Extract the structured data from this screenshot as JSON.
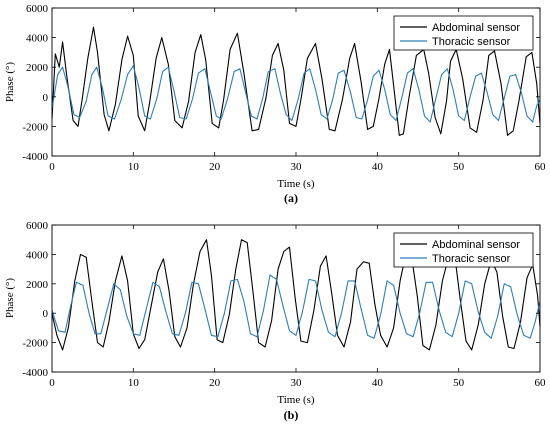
{
  "chart_data": [
    {
      "type": "line",
      "caption": "(a)",
      "xlabel": "Time (s)",
      "ylabel": "Phase (°)",
      "xlim": [
        0,
        60
      ],
      "ylim": [
        -4000,
        6000
      ],
      "xticks": [
        "0",
        "10",
        "20",
        "30",
        "40",
        "50",
        "60"
      ],
      "yticks": [
        "-4000",
        "-2000",
        "0",
        "2000",
        "4000",
        "6000"
      ],
      "legend_position": "top-right",
      "series": [
        {
          "name": "Abdominal sensor",
          "color": "#000000",
          "x": [
            0,
            0.4,
            0.9,
            1.3,
            1.8,
            2.6,
            3.2,
            3.7,
            4.4,
            5.1,
            5.6,
            6.4,
            7.0,
            7.8,
            8.6,
            9.3,
            10.0,
            10.6,
            11.4,
            12.0,
            12.8,
            13.5,
            14.3,
            15.1,
            16.0,
            16.8,
            17.6,
            18.3,
            18.9,
            19.7,
            20.5,
            21.1,
            21.9,
            22.8,
            23.6,
            24.6,
            25.4,
            26.3,
            27.1,
            27.8,
            28.5,
            29.2,
            30.0,
            30.6,
            31.4,
            32.4,
            33.2,
            34.1,
            34.8,
            35.7,
            36.6,
            37.2,
            38.0,
            38.8,
            39.5,
            40.2,
            40.9,
            41.5,
            42.1,
            42.7,
            43.2,
            43.9,
            44.8,
            45.7,
            46.3,
            47.1,
            47.8,
            48.5,
            49.0,
            49.7,
            50.5,
            51.4,
            52.2,
            53.0,
            53.7,
            54.4,
            55.2,
            56.0,
            56.7,
            57.4,
            58.3,
            59.0,
            59.6,
            60.0
          ],
          "y": [
            -1500,
            2900,
            2000,
            3700,
            1500,
            -1600,
            -2000,
            -200,
            2600,
            4700,
            3000,
            -1200,
            -2300,
            -500,
            2500,
            4100,
            2800,
            -1300,
            -2300,
            -400,
            2600,
            4000,
            2200,
            -1600,
            -2100,
            -300,
            3000,
            4200,
            2500,
            -1800,
            -2100,
            -200,
            3200,
            4300,
            1600,
            -2300,
            -2200,
            -100,
            2800,
            3600,
            1800,
            -1800,
            -2000,
            -200,
            2600,
            3600,
            1200,
            -2200,
            -2300,
            -200,
            2600,
            3600,
            1000,
            -2200,
            -2000,
            -100,
            2200,
            3200,
            300,
            -2600,
            -2500,
            0,
            2800,
            3200,
            1600,
            -1400,
            -2500,
            -300,
            2400,
            3200,
            1200,
            -2100,
            -2400,
            -200,
            2800,
            3100,
            900,
            -2600,
            -2300,
            -300,
            2700,
            3000,
            900,
            -1800
          ]
        },
        {
          "name": "Thoracic sensor",
          "color": "#2c7fb8",
          "x": [
            0,
            0.7,
            1.3,
            1.9,
            2.7,
            3.4,
            4.2,
            4.9,
            5.5,
            6.2,
            6.9,
            7.7,
            8.5,
            9.3,
            10.0,
            10.7,
            11.4,
            12.1,
            12.9,
            13.6,
            14.3,
            15.0,
            15.7,
            16.5,
            17.3,
            18.0,
            18.8,
            19.5,
            20.2,
            20.8,
            21.6,
            22.4,
            23.1,
            23.8,
            24.5,
            25.2,
            25.9,
            26.6,
            27.4,
            28.1,
            28.8,
            29.5,
            30.3,
            31.0,
            31.7,
            32.4,
            33.1,
            33.8,
            34.5,
            35.2,
            35.9,
            36.7,
            37.4,
            38.1,
            38.8,
            39.5,
            40.2,
            40.9,
            41.6,
            42.3,
            43.0,
            43.7,
            44.4,
            45.1,
            45.8,
            46.5,
            47.2,
            47.9,
            48.6,
            49.3,
            50.0,
            50.7,
            51.4,
            52.1,
            52.8,
            53.5,
            54.2,
            54.9,
            55.6,
            56.3,
            57.0,
            57.7,
            58.4,
            59.1,
            59.6,
            60.0
          ],
          "y": [
            -800,
            1500,
            2000,
            800,
            -1200,
            -1400,
            -300,
            1500,
            2000,
            600,
            -1300,
            -1500,
            -200,
            1500,
            2100,
            600,
            -1300,
            -1500,
            -100,
            1700,
            2000,
            400,
            -1400,
            -1500,
            -100,
            1600,
            1900,
            300,
            -1300,
            -1500,
            -100,
            1700,
            1900,
            300,
            -1300,
            -1500,
            -100,
            1700,
            1900,
            200,
            -1200,
            -1600,
            -100,
            1600,
            1900,
            500,
            -1200,
            -1500,
            -200,
            1600,
            1800,
            300,
            -1400,
            -1500,
            -200,
            1400,
            1800,
            500,
            -1200,
            -1600,
            -100,
            1600,
            1900,
            500,
            -1300,
            -1700,
            -100,
            1500,
            1900,
            500,
            -1300,
            -1600,
            0,
            1400,
            1600,
            300,
            -1200,
            -1600,
            -100,
            1400,
            1500,
            300,
            -1300,
            -1700,
            -600,
            -200
          ]
        }
      ]
    },
    {
      "type": "line",
      "caption": "(b)",
      "xlabel": "Time (s)",
      "ylabel": "Phase (°)",
      "xlim": [
        0,
        60
      ],
      "ylim": [
        -4000,
        6000
      ],
      "xticks": [
        "0",
        "10",
        "20",
        "30",
        "40",
        "50",
        "60"
      ],
      "yticks": [
        "-4000",
        "-2000",
        "0",
        "2000",
        "4000",
        "6000"
      ],
      "legend_position": "top-right",
      "series": [
        {
          "name": "Abdominal sensor",
          "color": "#000000",
          "x": [
            0,
            0.6,
            1.3,
            2.0,
            2.8,
            3.5,
            4.2,
            4.9,
            5.6,
            6.3,
            7.0,
            7.8,
            8.6,
            9.3,
            10.0,
            10.7,
            11.4,
            12.2,
            13.0,
            13.7,
            14.4,
            15.1,
            15.8,
            16.6,
            17.4,
            18.2,
            19.0,
            19.6,
            20.3,
            21.0,
            21.8,
            22.6,
            23.3,
            24.0,
            24.7,
            25.4,
            26.2,
            27.0,
            27.8,
            28.5,
            29.2,
            29.9,
            30.6,
            31.4,
            32.2,
            33.0,
            33.7,
            34.4,
            35.1,
            35.9,
            36.7,
            37.5,
            38.3,
            39.0,
            39.7,
            40.4,
            41.2,
            42.0,
            42.8,
            43.5,
            44.2,
            44.9,
            45.6,
            46.4,
            47.2,
            48.0,
            48.8,
            49.5,
            50.2,
            50.9,
            51.6,
            52.4,
            53.2,
            54.0,
            54.7,
            55.4,
            56.1,
            56.8,
            57.6,
            58.4,
            59.1,
            59.7,
            60.0
          ],
          "y": [
            0,
            -1500,
            -2500,
            -1000,
            2200,
            4000,
            3800,
            800,
            -2000,
            -2300,
            -600,
            2200,
            3900,
            2200,
            -1400,
            -2400,
            -1800,
            500,
            2800,
            3700,
            1500,
            -1600,
            -2300,
            -1000,
            2000,
            4200,
            5000,
            2600,
            -1800,
            -2000,
            -100,
            3000,
            5000,
            4800,
            1500,
            -2000,
            -2300,
            -500,
            3000,
            4200,
            4500,
            1000,
            -1900,
            -2000,
            200,
            3200,
            3900,
            1300,
            -1500,
            -2300,
            -600,
            3000,
            3500,
            3400,
            600,
            -1500,
            -2300,
            -1000,
            2200,
            4000,
            3900,
            1200,
            -2200,
            -2500,
            -800,
            2200,
            3900,
            4000,
            900,
            -1900,
            -2500,
            -800,
            2000,
            3600,
            2800,
            -200,
            -2300,
            -2400,
            -600,
            2400,
            3300,
            1200,
            -900
          ]
        },
        {
          "name": "Thoracic sensor",
          "color": "#2c7fb8",
          "x": [
            0,
            0.8,
            1.6,
            2.3,
            3.0,
            3.8,
            4.6,
            5.3,
            6.0,
            6.8,
            7.6,
            8.4,
            9.2,
            10.0,
            10.8,
            11.6,
            12.4,
            13.2,
            14.0,
            14.8,
            15.6,
            16.4,
            17.2,
            18.0,
            18.8,
            19.6,
            20.4,
            21.2,
            22.0,
            22.8,
            23.6,
            24.4,
            25.2,
            26.0,
            26.8,
            27.6,
            28.4,
            29.2,
            30.0,
            30.8,
            31.6,
            32.4,
            33.2,
            34.0,
            34.8,
            35.6,
            36.4,
            37.2,
            38.0,
            38.8,
            39.6,
            40.4,
            41.2,
            42.0,
            42.8,
            43.6,
            44.4,
            45.2,
            46.0,
            46.8,
            47.6,
            48.4,
            49.2,
            50.0,
            50.8,
            51.6,
            52.4,
            53.2,
            54.0,
            54.8,
            55.6,
            56.4,
            57.2,
            58.0,
            58.8,
            59.4,
            60.0
          ],
          "y": [
            200,
            -1200,
            -1300,
            500,
            2100,
            1900,
            -100,
            -1400,
            -1400,
            300,
            2000,
            1600,
            -200,
            -1400,
            -1500,
            300,
            2100,
            1800,
            100,
            -1400,
            -1500,
            0,
            2100,
            2000,
            300,
            -1500,
            -1600,
            0,
            2200,
            2300,
            800,
            -1400,
            -1600,
            200,
            2600,
            2300,
            500,
            -1200,
            -1500,
            100,
            2300,
            2200,
            200,
            -1300,
            -1600,
            0,
            2200,
            2200,
            300,
            -1500,
            -1700,
            -100,
            2200,
            1900,
            0,
            -1400,
            -1600,
            0,
            2100,
            2100,
            200,
            -1300,
            -1600,
            0,
            2200,
            2000,
            100,
            -1300,
            -1700,
            -200,
            2000,
            1800,
            -100,
            -1500,
            -1700,
            -600,
            800
          ]
        }
      ]
    }
  ]
}
